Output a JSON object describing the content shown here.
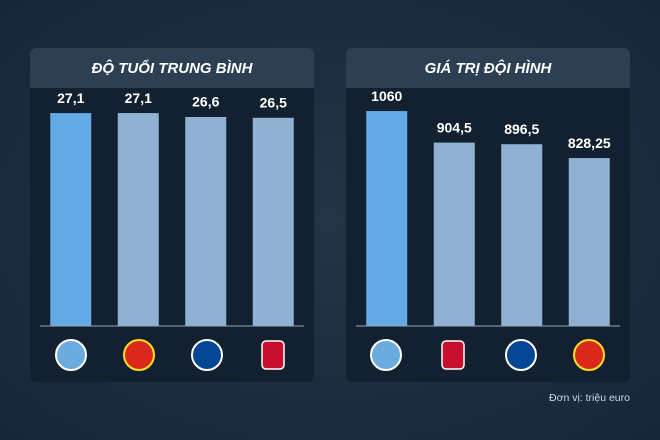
{
  "chart_data": [
    {
      "type": "bar",
      "title": "ĐỘ TUỔI TRUNG BÌNH",
      "categories": [
        null,
        null,
        null,
        null
      ],
      "values": [
        27.1,
        27.1,
        26.6,
        26.5
      ],
      "value_labels": [
        "27,1",
        "27,1",
        "26,6",
        "26,5"
      ],
      "colors": [
        "#62abe6",
        "#8fb2d4",
        "#8fb2d4",
        "#8fb2d4"
      ],
      "ylim": [
        0,
        28
      ]
    },
    {
      "type": "bar",
      "title": "GIÁ TRỊ ĐỘI HÌNH",
      "categories": [
        null,
        null,
        null,
        null
      ],
      "values": [
        1060,
        904.5,
        896.5,
        828.25
      ],
      "value_labels": [
        "1060",
        "904,5",
        "896,5",
        "828,25"
      ],
      "colors": [
        "#62abe6",
        "#8fb2d4",
        "#8fb2d4",
        "#8fb2d4"
      ],
      "ylim": [
        0,
        1085
      ]
    }
  ],
  "footnote": "Đơn vị: triệu euro"
}
